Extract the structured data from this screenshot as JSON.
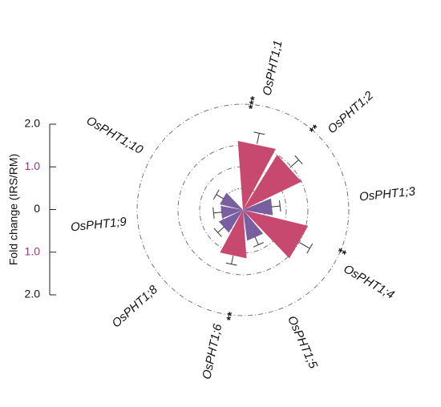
{
  "colors": {
    "up": "#c8496f",
    "down": "#7a5fa0",
    "mid_tick": "#8e3a8a",
    "text": "#111111",
    "ring": "#666666"
  },
  "chart_data": {
    "type": "polar-bar",
    "title": "",
    "ylabel": "Fold change (IRS/RM)",
    "scale_ticks": [
      "2.0",
      "1.0",
      "0",
      "1.0",
      "2.0"
    ],
    "scale_tick_values": [
      2.0,
      1.0,
      0,
      1.0,
      2.0
    ],
    "scale_tick_colors": [
      "#111111",
      "#8e3a8a",
      "#111111",
      "#8e3a8a",
      "#111111"
    ],
    "rings": [
      0.5,
      1.0,
      1.5,
      2.0
    ],
    "categories": [
      "OsPHT1;1",
      "OsPHT1;2",
      "OsPHT1;3",
      "OsPHT1;4",
      "OsPHT1;5",
      "OsPHT1;6",
      "OsPHT1;8",
      "OsPHT1;9",
      "OsPHT1;10"
    ],
    "label_display": [
      "OsPHT1;1",
      "OsPHT1;2",
      "OsPHT1;3",
      "OsPHT1;4",
      "OsPHT1;5",
      "OsPHT1;6",
      "OsPHT1;8",
      "OsPHT1;9",
      "OsPHT1;10"
    ],
    "values": [
      1.6,
      1.5,
      0.7,
      1.55,
      0.72,
      1.12,
      0.62,
      0.52,
      0.55
    ],
    "errors": [
      0.1,
      0.12,
      0.05,
      0.12,
      0.05,
      0.05,
      0.05,
      0.05,
      0.05
    ],
    "direction": [
      "up",
      "up",
      "down",
      "up",
      "down",
      "up",
      "down",
      "down",
      "down"
    ],
    "significance": [
      "***",
      "**",
      "",
      "**",
      "",
      "**",
      "",
      "",
      ""
    ]
  }
}
